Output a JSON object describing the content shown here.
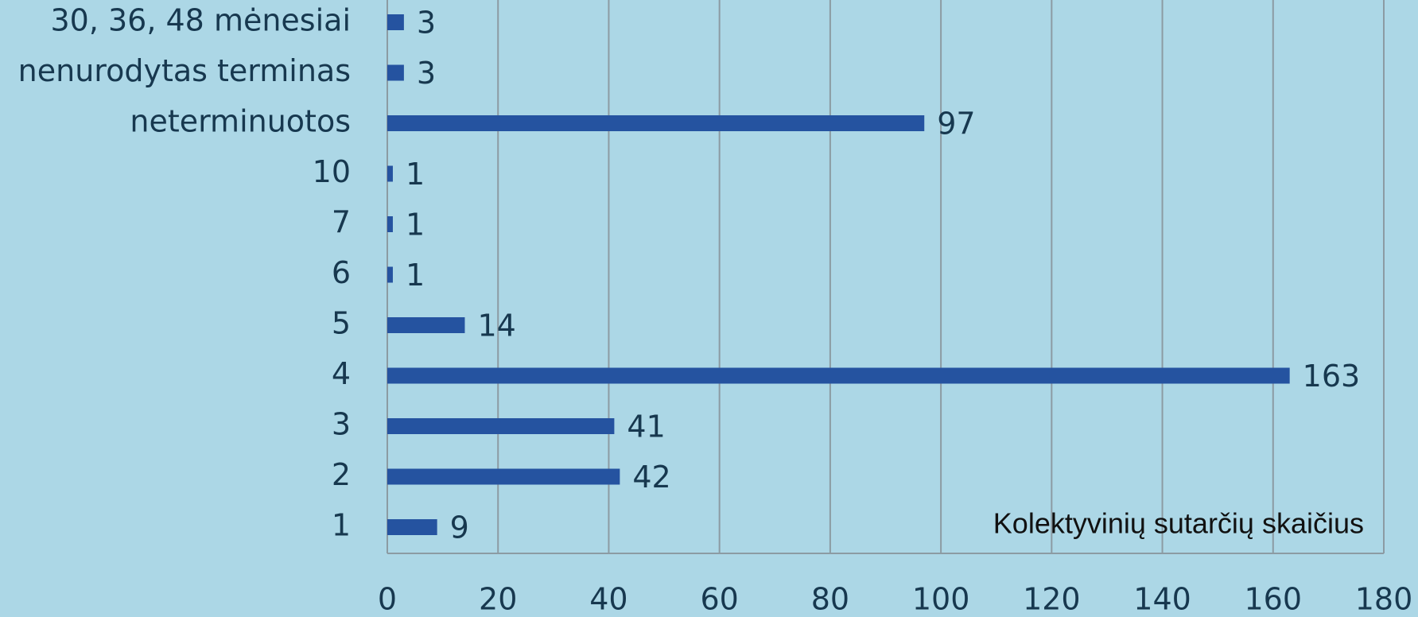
{
  "chart_data": {
    "type": "barh",
    "annotation": "Kolektyvinių sutarčių skaičius",
    "categories": [
      "1",
      "2",
      "3",
      "4",
      "5",
      "6",
      "7",
      "10",
      "neterminuotos",
      "nenurodytas terminas",
      "30, 36, 48 mėnesiai"
    ],
    "values": [
      9,
      42,
      41,
      163,
      14,
      1,
      1,
      1,
      97,
      3,
      3
    ],
    "color": "#2553a0",
    "xlim": [
      0,
      180
    ],
    "xticks": [
      0,
      20,
      40,
      60,
      80,
      100,
      120,
      140,
      160,
      180
    ],
    "grid": true
  }
}
